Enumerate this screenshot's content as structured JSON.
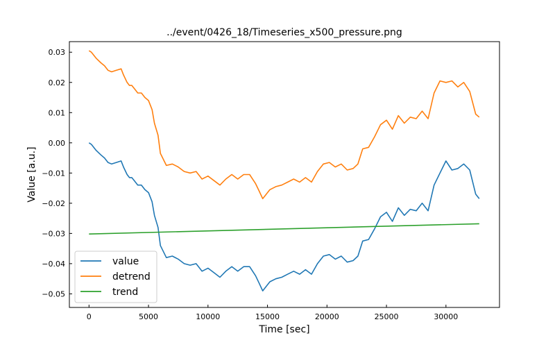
{
  "chart_data": {
    "type": "line",
    "title": "../event/0426_18/Timeseries_x500_pressure.png",
    "xlabel": "Time [sec]",
    "ylabel": "Value [a.u.]",
    "xlim": [
      -1650,
      34500
    ],
    "ylim": [
      -0.0545,
      0.0335
    ],
    "xticks": [
      0,
      5000,
      10000,
      15000,
      20000,
      25000,
      30000
    ],
    "yticks": [
      -0.05,
      -0.04,
      -0.03,
      -0.02,
      -0.01,
      0.0,
      0.01,
      0.02,
      0.03
    ],
    "ytick_labels": [
      "−0.05",
      "−0.04",
      "−0.03",
      "−0.02",
      "−0.01",
      "0.00",
      "0.01",
      "0.02",
      "0.03"
    ],
    "grid": false,
    "legend": "bottom-left",
    "series": [
      {
        "name": "value",
        "color": "#1f77b4",
        "x": [
          0,
          200,
          600,
          1000,
          1300,
          1600,
          1900,
          2300,
          2700,
          2900,
          3200,
          3400,
          3600,
          3900,
          4100,
          4400,
          4700,
          5000,
          5300,
          5500,
          5800,
          6000,
          6500,
          7000,
          7500,
          8000,
          8500,
          9000,
          9500,
          10000,
          10500,
          11000,
          11500,
          12000,
          12500,
          13000,
          13500,
          14000,
          14300,
          14600,
          14800,
          15200,
          15700,
          16200,
          16700,
          17200,
          17700,
          18200,
          18700,
          19200,
          19700,
          20200,
          20700,
          21200,
          21700,
          22200,
          22600,
          23000,
          23500,
          24000,
          24500,
          25000,
          25500,
          26000,
          26500,
          27000,
          27500,
          28000,
          28500,
          29000,
          29500,
          30000,
          30500,
          31000,
          31500,
          32000,
          32500,
          32800
        ],
        "y": [
          0.0,
          -0.0005,
          -0.0025,
          -0.004,
          -0.005,
          -0.0065,
          -0.007,
          -0.0065,
          -0.006,
          -0.008,
          -0.0105,
          -0.0115,
          -0.0115,
          -0.013,
          -0.014,
          -0.014,
          -0.0155,
          -0.0165,
          -0.0195,
          -0.024,
          -0.028,
          -0.034,
          -0.038,
          -0.0375,
          -0.0385,
          -0.04,
          -0.0405,
          -0.04,
          -0.0425,
          -0.0415,
          -0.043,
          -0.0445,
          -0.0425,
          -0.041,
          -0.0425,
          -0.041,
          -0.041,
          -0.044,
          -0.0465,
          -0.049,
          -0.048,
          -0.046,
          -0.045,
          -0.0445,
          -0.0435,
          -0.0425,
          -0.0435,
          -0.042,
          -0.0435,
          -0.04,
          -0.0375,
          -0.037,
          -0.0385,
          -0.0375,
          -0.0395,
          -0.039,
          -0.0375,
          -0.0325,
          -0.032,
          -0.0285,
          -0.0245,
          -0.023,
          -0.026,
          -0.0215,
          -0.024,
          -0.022,
          -0.0225,
          -0.02,
          -0.0225,
          -0.014,
          -0.01,
          -0.006,
          -0.009,
          -0.0085,
          -0.007,
          -0.009,
          -0.017,
          -0.0185
        ]
      },
      {
        "name": "detrend",
        "color": "#ff7f0e",
        "x": [
          0,
          200,
          600,
          1000,
          1300,
          1600,
          1900,
          2300,
          2700,
          2900,
          3200,
          3400,
          3600,
          3900,
          4100,
          4400,
          4700,
          5000,
          5300,
          5500,
          5800,
          6000,
          6500,
          7000,
          7500,
          8000,
          8500,
          9000,
          9500,
          10000,
          10500,
          11000,
          11500,
          12000,
          12500,
          13000,
          13500,
          14000,
          14300,
          14600,
          14800,
          15200,
          15700,
          16200,
          16700,
          17200,
          17700,
          18200,
          18700,
          19200,
          19700,
          20200,
          20700,
          21200,
          21700,
          22200,
          22600,
          23000,
          23500,
          24000,
          24500,
          25000,
          25500,
          26000,
          26500,
          27000,
          27500,
          28000,
          28500,
          29000,
          29500,
          30000,
          30500,
          31000,
          31500,
          32000,
          32500,
          32800
        ],
        "y": [
          0.0305,
          0.03,
          0.028,
          0.0265,
          0.0255,
          0.024,
          0.0235,
          0.024,
          0.0245,
          0.0225,
          0.02,
          0.019,
          0.019,
          0.0175,
          0.0165,
          0.0165,
          0.015,
          0.014,
          0.011,
          0.0065,
          0.0025,
          -0.0035,
          -0.0075,
          -0.007,
          -0.008,
          -0.0095,
          -0.01,
          -0.0095,
          -0.012,
          -0.011,
          -0.0125,
          -0.014,
          -0.012,
          -0.0105,
          -0.012,
          -0.0105,
          -0.0105,
          -0.0135,
          -0.016,
          -0.0185,
          -0.0175,
          -0.0155,
          -0.0145,
          -0.014,
          -0.013,
          -0.012,
          -0.013,
          -0.0115,
          -0.013,
          -0.0095,
          -0.007,
          -0.0065,
          -0.008,
          -0.007,
          -0.009,
          -0.0085,
          -0.007,
          -0.002,
          -0.0015,
          0.002,
          0.006,
          0.0075,
          0.0045,
          0.009,
          0.0065,
          0.0085,
          0.008,
          0.0105,
          0.008,
          0.0165,
          0.0205,
          0.02,
          0.0205,
          0.0185,
          0.02,
          0.017,
          0.0095,
          0.0085
        ]
      },
      {
        "name": "trend",
        "color": "#2ca02c",
        "x": [
          0,
          32800
        ],
        "y": [
          -0.0302,
          -0.0268
        ]
      }
    ]
  }
}
